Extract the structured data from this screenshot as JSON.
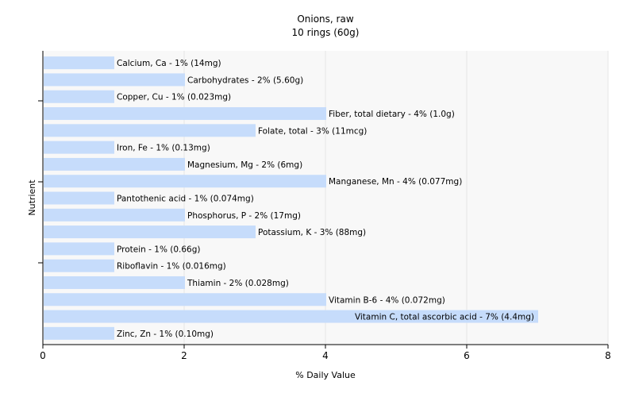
{
  "chart_data": {
    "type": "bar",
    "orientation": "horizontal",
    "title": "Onions, raw",
    "subtitle": "10 rings (60g)",
    "xlabel": "% Daily Value",
    "ylabel": "Nutrient",
    "xlim": [
      0,
      8
    ],
    "xticks": [
      "0",
      "2",
      "4",
      "6",
      "8"
    ],
    "grid": true,
    "colors": {
      "bar": "#c6dcfb",
      "background": "#f8f8f8",
      "grid": "#e6e6e6",
      "axis": "#000000"
    },
    "categories": [
      "Calcium, Ca",
      "Carbohydrates",
      "Copper, Cu",
      "Fiber, total dietary",
      "Folate, total",
      "Iron, Fe",
      "Magnesium, Mg",
      "Manganese, Mn",
      "Pantothenic acid",
      "Phosphorus, P",
      "Potassium, K",
      "Protein",
      "Riboflavin",
      "Thiamin",
      "Vitamin B-6",
      "Vitamin C, total ascorbic acid",
      "Zinc, Zn"
    ],
    "values": [
      1,
      2,
      1,
      4,
      3,
      1,
      2,
      4,
      1,
      2,
      3,
      1,
      1,
      2,
      4,
      7,
      1
    ],
    "labels": [
      "Calcium, Ca - 1% (14mg)",
      "Carbohydrates - 2% (5.60g)",
      "Copper, Cu - 1% (0.023mg)",
      "Fiber, total dietary - 4% (1.0g)",
      "Folate, total - 3% (11mcg)",
      "Iron, Fe - 1% (0.13mg)",
      "Magnesium, Mg - 2% (6mg)",
      "Manganese, Mn - 4% (0.077mg)",
      "Pantothenic acid - 1% (0.074mg)",
      "Phosphorus, P - 2% (17mg)",
      "Potassium, K - 3% (88mg)",
      "Protein - 1% (0.66g)",
      "Riboflavin - 1% (0.016mg)",
      "Thiamin - 2% (0.028mg)",
      "Vitamin B-6 - 4% (0.072mg)",
      "Vitamin C, total ascorbic acid - 7% (4.4mg)",
      "Zinc, Zn - 1% (0.10mg)"
    ]
  }
}
